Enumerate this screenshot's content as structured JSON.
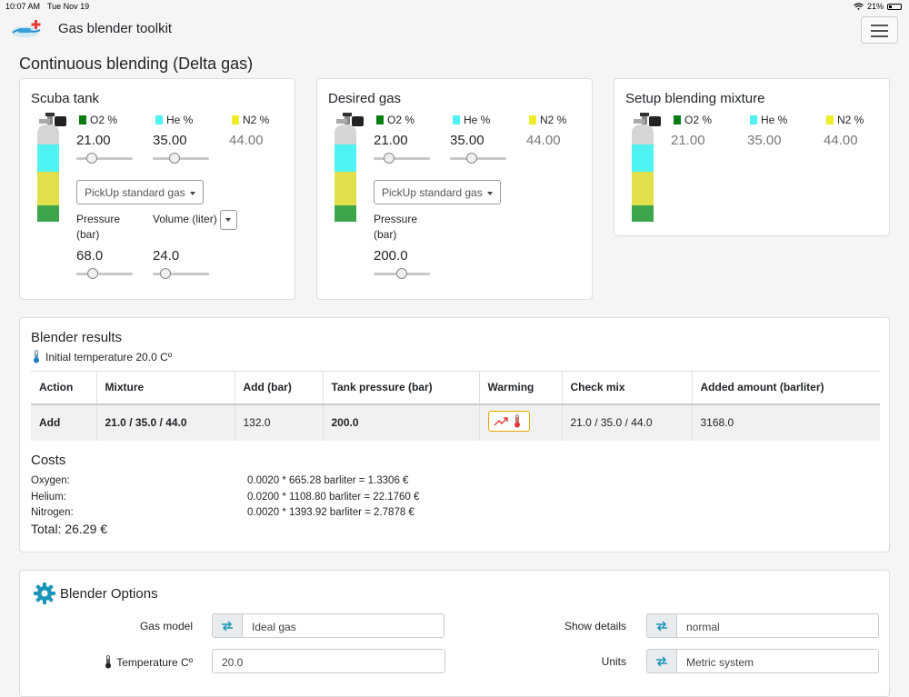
{
  "status": {
    "time": "10:07 AM",
    "date": "Tue Nov 19",
    "battery": "21%"
  },
  "header": {
    "brand": "Gas blender toolkit"
  },
  "page_title": "Continuous blending (Delta gas)",
  "labels": {
    "o2": "O2 %",
    "he": "He %",
    "n2": "N2 %",
    "pickup": "PickUp standard gas",
    "pressure_1": "Pressure",
    "pressure_2": "(bar)",
    "volume": "Volume (liter)"
  },
  "scuba": {
    "title": "Scuba tank",
    "o2": "21.00",
    "he": "35.00",
    "n2": "44.00",
    "pressure": "68.0",
    "volume": "24.0",
    "o2_slider": 0.21,
    "he_slider": 0.35,
    "pressure_slider": 0.23,
    "volume_slider": 0.16
  },
  "desired": {
    "title": "Desired gas",
    "o2": "21.00",
    "he": "35.00",
    "n2": "44.00",
    "pressure": "200.0",
    "o2_slider": 0.21,
    "he_slider": 0.35,
    "pressure_slider": 0.5
  },
  "setup": {
    "title": "Setup blending mixture",
    "o2": "21.00",
    "he": "35.00",
    "n2": "44.00"
  },
  "results": {
    "title": "Blender results",
    "initial_temp": "Initial temperature 20.0 Cº",
    "headers": [
      "Action",
      "Mixture",
      "Add (bar)",
      "Tank pressure (bar)",
      "Warming",
      "Check mix",
      "Added amount (barliter)"
    ],
    "row": {
      "action": "Add",
      "mixture": "21.0 / 35.0 / 44.0",
      "add": "132.0",
      "tank_pressure": "200.0",
      "check_mix": "21.0 / 35.0 / 44.0",
      "added_amount": "3168.0"
    }
  },
  "costs": {
    "title": "Costs",
    "items": [
      {
        "label": "Oxygen:",
        "value": "0.0020 * 665.28 barliter = 1.3306 €"
      },
      {
        "label": "Helium:",
        "value": "0.0200 * 1108.80 barliter = 22.1760 €"
      },
      {
        "label": "Nitrogen:",
        "value": "0.0020 * 1393.92 barliter = 2.7878 €"
      }
    ],
    "total": "Total: 26.29 €"
  },
  "options": {
    "title": "Blender Options",
    "gas_model_label": "Gas model",
    "gas_model": "Ideal gas",
    "show_details_label": "Show details",
    "show_details": "normal",
    "temperature_label": "Temperature Cº",
    "temperature": "20.0",
    "units_label": "Units",
    "units": "Metric system"
  },
  "colors": {
    "o2": "#0a7d12",
    "he": "#4ff3f3",
    "n2": "#eded2a",
    "accent": "#1a95b8",
    "warming": "#e6a700"
  }
}
